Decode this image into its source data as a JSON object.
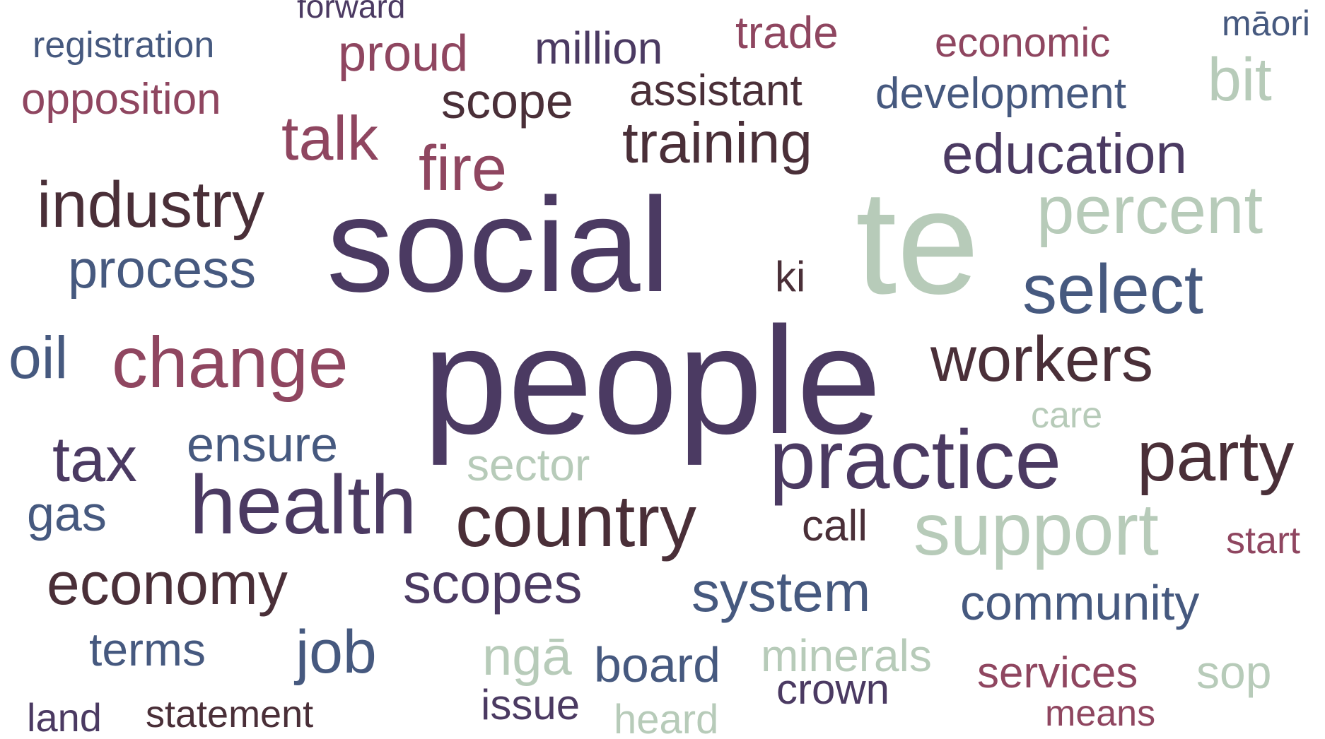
{
  "palette": {
    "purple": "#4b3a62",
    "blue": "#46597f",
    "rose": "#8f4660",
    "brown": "#4a2f38",
    "sage": "#b7cbb9"
  },
  "words": [
    {
      "text": "forward",
      "color": "purple",
      "weight": 46
    },
    {
      "text": "registration",
      "color": "blue",
      "weight": 52
    },
    {
      "text": "proud",
      "color": "rose",
      "weight": 72
    },
    {
      "text": "million",
      "color": "purple",
      "weight": 64
    },
    {
      "text": "trade",
      "color": "rose",
      "weight": 64
    },
    {
      "text": "economic",
      "color": "rose",
      "weight": 58
    },
    {
      "text": "māori",
      "color": "blue",
      "weight": 50
    },
    {
      "text": "opposition",
      "color": "rose",
      "weight": 62
    },
    {
      "text": "scope",
      "color": "brown",
      "weight": 70
    },
    {
      "text": "assistant",
      "color": "brown",
      "weight": 62
    },
    {
      "text": "development",
      "color": "blue",
      "weight": 62
    },
    {
      "text": "bit",
      "color": "sage",
      "weight": 86
    },
    {
      "text": "talk",
      "color": "rose",
      "weight": 88
    },
    {
      "text": "fire",
      "color": "rose",
      "weight": 90
    },
    {
      "text": "training",
      "color": "brown",
      "weight": 82
    },
    {
      "text": "education",
      "color": "purple",
      "weight": 80
    },
    {
      "text": "industry",
      "color": "brown",
      "weight": 92
    },
    {
      "text": "percent",
      "color": "sage",
      "weight": 96
    },
    {
      "text": "social",
      "color": "purple",
      "weight": 190
    },
    {
      "text": "te",
      "color": "sage",
      "weight": 210
    },
    {
      "text": "process",
      "color": "blue",
      "weight": 76
    },
    {
      "text": "ki",
      "color": "brown",
      "weight": 60
    },
    {
      "text": "select",
      "color": "blue",
      "weight": 98
    },
    {
      "text": "oil",
      "color": "blue",
      "weight": 84
    },
    {
      "text": "change",
      "color": "rose",
      "weight": 102
    },
    {
      "text": "people",
      "color": "purple",
      "weight": 216
    },
    {
      "text": "workers",
      "color": "brown",
      "weight": 90
    },
    {
      "text": "care",
      "color": "sage",
      "weight": 52
    },
    {
      "text": "tax",
      "color": "purple",
      "weight": 90
    },
    {
      "text": "ensure",
      "color": "blue",
      "weight": 70
    },
    {
      "text": "sector",
      "color": "sage",
      "weight": 64
    },
    {
      "text": "practice",
      "color": "purple",
      "weight": 118
    },
    {
      "text": "party",
      "color": "brown",
      "weight": 100
    },
    {
      "text": "gas",
      "color": "blue",
      "weight": 70
    },
    {
      "text": "health",
      "color": "purple",
      "weight": 118
    },
    {
      "text": "country",
      "color": "brown",
      "weight": 104
    },
    {
      "text": "call",
      "color": "brown",
      "weight": 62
    },
    {
      "text": "support",
      "color": "sage",
      "weight": 104
    },
    {
      "text": "start",
      "color": "rose",
      "weight": 54
    },
    {
      "text": "economy",
      "color": "brown",
      "weight": 84
    },
    {
      "text": "scopes",
      "color": "purple",
      "weight": 80
    },
    {
      "text": "system",
      "color": "blue",
      "weight": 80
    },
    {
      "text": "community",
      "color": "blue",
      "weight": 70
    },
    {
      "text": "terms",
      "color": "blue",
      "weight": 66
    },
    {
      "text": "job",
      "color": "blue",
      "weight": 86
    },
    {
      "text": "ngā",
      "color": "sage",
      "weight": 76
    },
    {
      "text": "board",
      "color": "blue",
      "weight": 70
    },
    {
      "text": "minerals",
      "color": "sage",
      "weight": 64
    },
    {
      "text": "services",
      "color": "rose",
      "weight": 62
    },
    {
      "text": "sop",
      "color": "sage",
      "weight": 66
    },
    {
      "text": "crown",
      "color": "purple",
      "weight": 60
    },
    {
      "text": "issue",
      "color": "purple",
      "weight": 60
    },
    {
      "text": "land",
      "color": "purple",
      "weight": 56
    },
    {
      "text": "statement",
      "color": "brown",
      "weight": 54
    },
    {
      "text": "heard",
      "color": "sage",
      "weight": 58
    },
    {
      "text": "means",
      "color": "rose",
      "weight": 52
    }
  ]
}
